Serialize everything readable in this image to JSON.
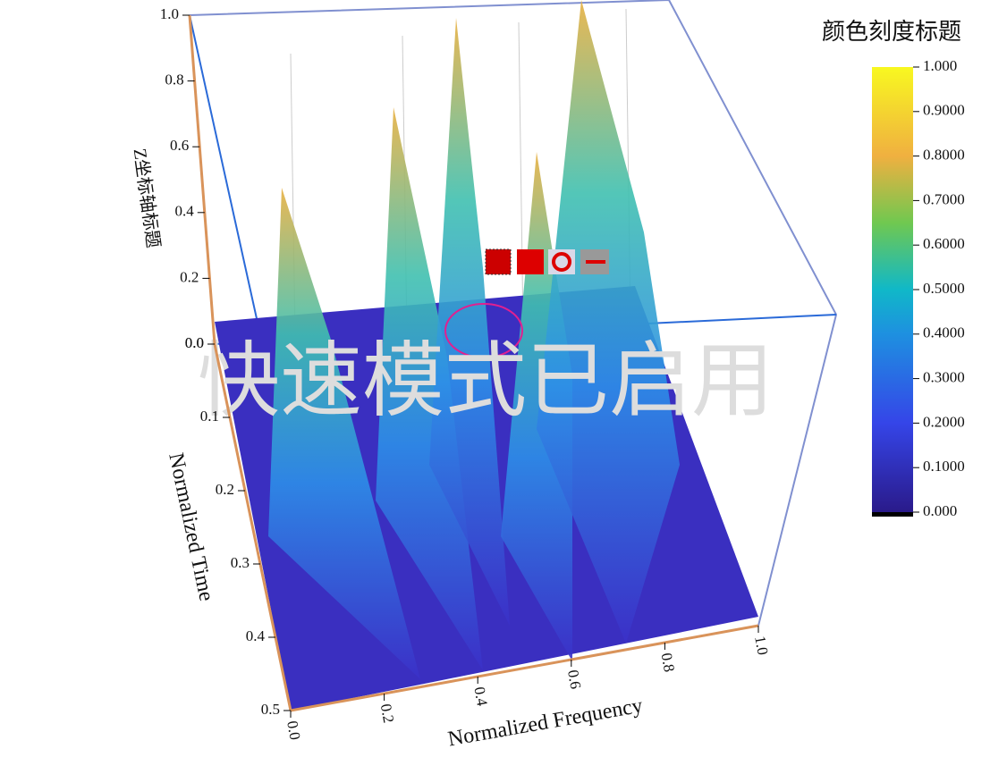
{
  "chart_data": {
    "type": "surface3d",
    "x_label": "Normalized Frequency",
    "y_label": "Normalized Time",
    "z_label": "Z坐标轴标题",
    "xlim": [
      0,
      1
    ],
    "xticks": [
      {
        "value": 0,
        "label": "0.0"
      },
      0.2,
      0.4,
      0.6,
      0.8,
      {
        "value": 1,
        "label": "1.0"
      }
    ],
    "ylim": [
      0,
      0.5
    ],
    "yticks": [
      {
        "value": 0,
        "label": "0.0"
      },
      0.1,
      0.2,
      0.3,
      0.4,
      0.5
    ],
    "zlim": [
      0,
      1
    ],
    "zticks": [
      {
        "value": 0,
        "label": "0.0"
      },
      0.2,
      0.4,
      0.6,
      0.8,
      {
        "value": 1,
        "label": "1.0"
      }
    ],
    "colorbar_title": "颜色刻度标题",
    "clim": [
      0,
      1
    ],
    "cticks": [
      {
        "value": 0,
        "label": "0.000"
      },
      {
        "value": 0.1,
        "label": "0.1000"
      },
      {
        "value": 0.2,
        "label": "0.2000"
      },
      {
        "value": 0.3,
        "label": "0.3000"
      },
      {
        "value": 0.4,
        "label": "0.4000"
      },
      {
        "value": 0.5,
        "label": "0.5000"
      },
      {
        "value": 0.6,
        "label": "0.6000"
      },
      {
        "value": 0.7,
        "label": "0.7000"
      },
      {
        "value": 0.8,
        "label": "0.8000"
      },
      {
        "value": 0.9,
        "label": "0.9000"
      },
      {
        "value": 1,
        "label": "1.000"
      }
    ],
    "overlay_text": "快速模式已启用"
  }
}
